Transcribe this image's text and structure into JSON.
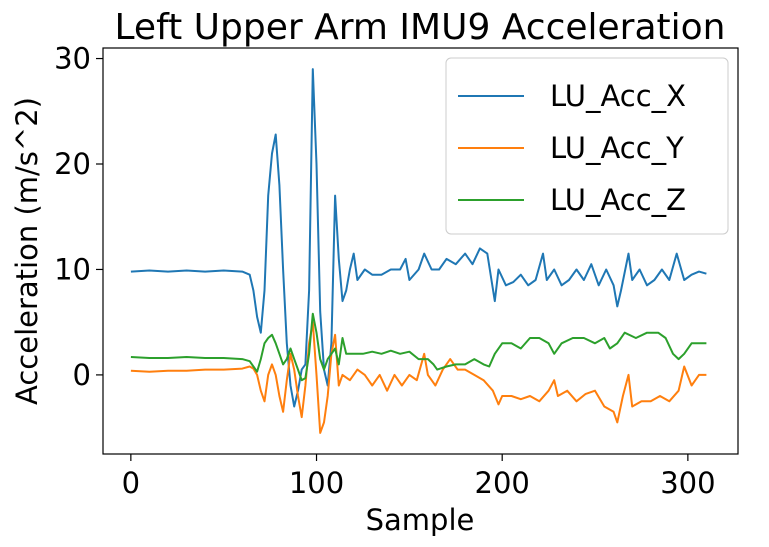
{
  "chart_data": {
    "type": "line",
    "title": "Left Upper Arm IMU9 Acceleration",
    "xlabel": "Sample",
    "ylabel": "Acceleration (m/s^2)",
    "xlim": [
      -15,
      327
    ],
    "ylim": [
      -7.5,
      31
    ],
    "xticks": [
      0,
      100,
      200,
      300
    ],
    "yticks": [
      0,
      10,
      20,
      30
    ],
    "grid": false,
    "legend_position": "top-right",
    "series": [
      {
        "name": "LU_Acc_X",
        "color": "#1f77b4",
        "points": [
          [
            0,
            9.8
          ],
          [
            10,
            9.9
          ],
          [
            20,
            9.8
          ],
          [
            30,
            9.9
          ],
          [
            40,
            9.8
          ],
          [
            50,
            9.9
          ],
          [
            60,
            9.8
          ],
          [
            64,
            9.5
          ],
          [
            66,
            8.0
          ],
          [
            68,
            5.5
          ],
          [
            70,
            4.0
          ],
          [
            72,
            8.0
          ],
          [
            74,
            17.0
          ],
          [
            76,
            21.0
          ],
          [
            78,
            22.8
          ],
          [
            80,
            18.0
          ],
          [
            82,
            10.0
          ],
          [
            84,
            3.0
          ],
          [
            86,
            -1.0
          ],
          [
            88,
            -3.0
          ],
          [
            90,
            -1.5
          ],
          [
            92,
            0.5
          ],
          [
            94,
            1.0
          ],
          [
            96,
            8.0
          ],
          [
            98,
            29.0
          ],
          [
            100,
            20.0
          ],
          [
            102,
            6.0
          ],
          [
            104,
            0.5
          ],
          [
            106,
            -1.0
          ],
          [
            108,
            3.0
          ],
          [
            110,
            17.0
          ],
          [
            112,
            11.0
          ],
          [
            114,
            7.0
          ],
          [
            116,
            8.0
          ],
          [
            118,
            10.0
          ],
          [
            120,
            11.5
          ],
          [
            122,
            9.0
          ],
          [
            126,
            10.0
          ],
          [
            130,
            9.5
          ],
          [
            135,
            9.5
          ],
          [
            140,
            10.0
          ],
          [
            145,
            10.0
          ],
          [
            148,
            11.0
          ],
          [
            150,
            9.0
          ],
          [
            155,
            10.0
          ],
          [
            158,
            11.5
          ],
          [
            162,
            10.0
          ],
          [
            166,
            10.0
          ],
          [
            170,
            11.0
          ],
          [
            175,
            10.5
          ],
          [
            180,
            11.5
          ],
          [
            184,
            10.5
          ],
          [
            188,
            12.0
          ],
          [
            192,
            11.5
          ],
          [
            196,
            7.0
          ],
          [
            198,
            10.0
          ],
          [
            202,
            8.5
          ],
          [
            206,
            8.8
          ],
          [
            210,
            9.5
          ],
          [
            214,
            8.5
          ],
          [
            218,
            9.0
          ],
          [
            222,
            11.5
          ],
          [
            224,
            9.0
          ],
          [
            228,
            10.0
          ],
          [
            232,
            8.5
          ],
          [
            236,
            9.0
          ],
          [
            240,
            10.0
          ],
          [
            244,
            9.0
          ],
          [
            248,
            10.5
          ],
          [
            252,
            8.5
          ],
          [
            256,
            10.0
          ],
          [
            260,
            8.5
          ],
          [
            262,
            6.5
          ],
          [
            264,
            8.0
          ],
          [
            268,
            11.5
          ],
          [
            270,
            9.0
          ],
          [
            274,
            10.0
          ],
          [
            278,
            8.5
          ],
          [
            282,
            9.0
          ],
          [
            286,
            10.0
          ],
          [
            290,
            9.0
          ],
          [
            294,
            11.5
          ],
          [
            298,
            9.0
          ],
          [
            302,
            9.5
          ],
          [
            306,
            9.8
          ],
          [
            310,
            9.6
          ]
        ]
      },
      {
        "name": "LU_Acc_Y",
        "color": "#ff7f0e",
        "points": [
          [
            0,
            0.4
          ],
          [
            10,
            0.3
          ],
          [
            20,
            0.4
          ],
          [
            30,
            0.4
          ],
          [
            40,
            0.5
          ],
          [
            50,
            0.5
          ],
          [
            60,
            0.6
          ],
          [
            64,
            0.8
          ],
          [
            66,
            0.6
          ],
          [
            68,
            0.0
          ],
          [
            70,
            -1.5
          ],
          [
            72,
            -2.5
          ],
          [
            74,
            0.0
          ],
          [
            76,
            1.0
          ],
          [
            78,
            0.0
          ],
          [
            80,
            -2.0
          ],
          [
            82,
            -3.5
          ],
          [
            84,
            -0.5
          ],
          [
            86,
            2.0
          ],
          [
            88,
            0.5
          ],
          [
            90,
            -2.0
          ],
          [
            92,
            -4.0
          ],
          [
            94,
            -1.0
          ],
          [
            96,
            3.0
          ],
          [
            98,
            5.0
          ],
          [
            100,
            0.0
          ],
          [
            102,
            -5.5
          ],
          [
            104,
            -4.5
          ],
          [
            106,
            -2.0
          ],
          [
            108,
            2.0
          ],
          [
            110,
            3.8
          ],
          [
            112,
            -1.0
          ],
          [
            114,
            0.0
          ],
          [
            118,
            -0.5
          ],
          [
            122,
            0.5
          ],
          [
            126,
            0.0
          ],
          [
            130,
            -1.0
          ],
          [
            134,
            0.0
          ],
          [
            138,
            -1.5
          ],
          [
            142,
            0.0
          ],
          [
            146,
            -1.0
          ],
          [
            150,
            0.0
          ],
          [
            154,
            -0.5
          ],
          [
            158,
            2.0
          ],
          [
            160,
            0.0
          ],
          [
            164,
            -1.0
          ],
          [
            168,
            0.5
          ],
          [
            172,
            1.5
          ],
          [
            176,
            0.5
          ],
          [
            180,
            0.5
          ],
          [
            185,
            0.0
          ],
          [
            190,
            -0.5
          ],
          [
            195,
            -1.5
          ],
          [
            198,
            -2.8
          ],
          [
            200,
            -2.0
          ],
          [
            205,
            -2.0
          ],
          [
            210,
            -2.3
          ],
          [
            215,
            -2.0
          ],
          [
            220,
            -2.5
          ],
          [
            225,
            -1.5
          ],
          [
            228,
            -0.5
          ],
          [
            230,
            -2.0
          ],
          [
            235,
            -1.5
          ],
          [
            240,
            -2.5
          ],
          [
            245,
            -1.8
          ],
          [
            250,
            -1.5
          ],
          [
            255,
            -3.0
          ],
          [
            260,
            -3.5
          ],
          [
            262,
            -4.5
          ],
          [
            265,
            -2.0
          ],
          [
            268,
            0.0
          ],
          [
            270,
            -3.0
          ],
          [
            275,
            -2.5
          ],
          [
            280,
            -2.5
          ],
          [
            285,
            -2.0
          ],
          [
            290,
            -2.5
          ],
          [
            295,
            -1.5
          ],
          [
            298,
            0.8
          ],
          [
            302,
            -1.0
          ],
          [
            306,
            0.0
          ],
          [
            310,
            0.0
          ]
        ]
      },
      {
        "name": "LU_Acc_Z",
        "color": "#2ca02c",
        "points": [
          [
            0,
            1.7
          ],
          [
            10,
            1.6
          ],
          [
            20,
            1.6
          ],
          [
            30,
            1.7
          ],
          [
            40,
            1.6
          ],
          [
            50,
            1.6
          ],
          [
            60,
            1.5
          ],
          [
            64,
            1.3
          ],
          [
            66,
            0.8
          ],
          [
            68,
            0.3
          ],
          [
            70,
            1.5
          ],
          [
            72,
            3.0
          ],
          [
            74,
            3.5
          ],
          [
            76,
            3.8
          ],
          [
            78,
            3.0
          ],
          [
            80,
            2.0
          ],
          [
            82,
            1.0
          ],
          [
            84,
            1.5
          ],
          [
            86,
            2.5
          ],
          [
            88,
            1.5
          ],
          [
            90,
            0.5
          ],
          [
            92,
            -0.5
          ],
          [
            94,
            -0.3
          ],
          [
            96,
            2.0
          ],
          [
            98,
            5.8
          ],
          [
            100,
            4.0
          ],
          [
            102,
            1.5
          ],
          [
            104,
            0.5
          ],
          [
            106,
            1.5
          ],
          [
            108,
            2.0
          ],
          [
            110,
            2.5
          ],
          [
            112,
            1.0
          ],
          [
            114,
            3.5
          ],
          [
            116,
            2.0
          ],
          [
            120,
            2.0
          ],
          [
            125,
            2.0
          ],
          [
            130,
            2.2
          ],
          [
            135,
            2.0
          ],
          [
            140,
            2.3
          ],
          [
            145,
            2.0
          ],
          [
            150,
            2.2
          ],
          [
            155,
            1.5
          ],
          [
            160,
            1.5
          ],
          [
            163,
            1.0
          ],
          [
            165,
            0.5
          ],
          [
            170,
            0.8
          ],
          [
            175,
            1.0
          ],
          [
            180,
            1.0
          ],
          [
            185,
            1.5
          ],
          [
            190,
            1.0
          ],
          [
            193,
            0.8
          ],
          [
            196,
            2.0
          ],
          [
            200,
            3.0
          ],
          [
            205,
            3.0
          ],
          [
            210,
            2.5
          ],
          [
            215,
            3.5
          ],
          [
            220,
            3.5
          ],
          [
            225,
            3.0
          ],
          [
            228,
            2.0
          ],
          [
            232,
            3.0
          ],
          [
            238,
            3.5
          ],
          [
            244,
            3.5
          ],
          [
            250,
            3.0
          ],
          [
            255,
            3.5
          ],
          [
            258,
            2.5
          ],
          [
            262,
            3.0
          ],
          [
            266,
            4.0
          ],
          [
            272,
            3.5
          ],
          [
            278,
            4.0
          ],
          [
            284,
            4.0
          ],
          [
            288,
            3.5
          ],
          [
            292,
            2.0
          ],
          [
            295,
            1.5
          ],
          [
            298,
            2.0
          ],
          [
            302,
            3.0
          ],
          [
            306,
            3.0
          ],
          [
            310,
            3.0
          ]
        ]
      }
    ]
  }
}
